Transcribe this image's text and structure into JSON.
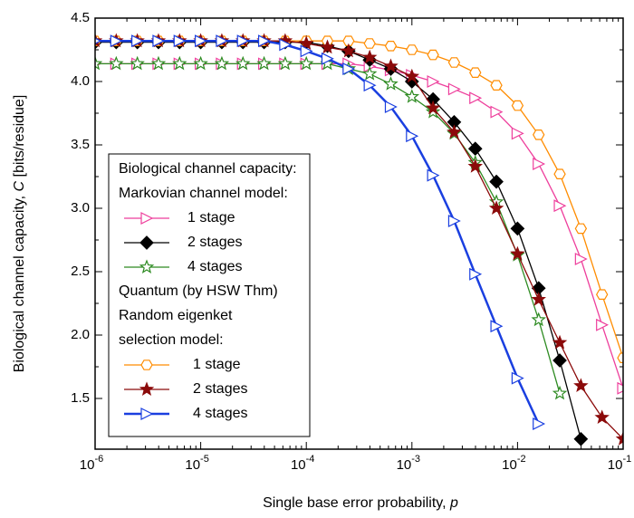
{
  "chart_data": {
    "type": "line",
    "ylabel": [
      "Biological channel capacity, ",
      "C",
      " [bits/residue]"
    ],
    "xlabel": [
      "Single base error probability, ",
      "p"
    ],
    "log_x": true,
    "xlim": [
      1e-06,
      0.1
    ],
    "xticks": [
      {
        "value": 1e-06,
        "label": "10",
        "exponent": "-6"
      },
      {
        "value": 1e-05,
        "label": "10",
        "exponent": "-5"
      },
      {
        "value": 0.0001,
        "label": "10",
        "exponent": "-4"
      },
      {
        "value": 0.001,
        "label": "10",
        "exponent": "-3"
      },
      {
        "value": 0.01,
        "label": "10",
        "exponent": "-2"
      },
      {
        "value": 0.1,
        "label": "10",
        "exponent": "-1"
      }
    ],
    "ylim": [
      1.1,
      4.5
    ],
    "yticks": [
      1.5,
      {
        "value": 2,
        "label": "2.0"
      },
      2.5,
      {
        "value": 3,
        "label": "3.0"
      },
      3.5,
      {
        "value": 4,
        "label": "4.0"
      },
      4.5
    ],
    "legend_headings": [
      [
        "Biological channel capacity:",
        "Markovian channel model:"
      ],
      [
        "Quantum (by HSW Thm)",
        "Random eigenket",
        "selection model:"
      ]
    ],
    "x": [
      1e-06,
      1.585e-06,
      2.512e-06,
      3.981e-06,
      6.31e-06,
      1e-05,
      1.585e-05,
      2.512e-05,
      3.981e-05,
      6.31e-05,
      0.0001,
      0.0001585,
      0.0002512,
      0.0003981,
      0.000631,
      0.001,
      0.001585,
      0.002512,
      0.003981,
      0.00631,
      0.01,
      0.01585,
      0.02512,
      0.03981,
      0.0631,
      0.1
    ],
    "series": [
      {
        "name": "1 stage",
        "color": "#ee3f9c",
        "marker": "triangle-right",
        "filled": false,
        "values": [
          4.14,
          4.14,
          4.14,
          4.14,
          4.14,
          4.14,
          4.14,
          4.14,
          4.14,
          4.14,
          4.14,
          4.14,
          4.14,
          4.12,
          4.09,
          4.05,
          4.0,
          3.94,
          3.87,
          3.76,
          3.59,
          3.35,
          3.02,
          2.6,
          2.08,
          1.58
        ]
      },
      {
        "name": "2 stages",
        "color": "#000000",
        "marker": "diamond",
        "filled": true,
        "values": [
          4.31,
          4.31,
          4.31,
          4.31,
          4.31,
          4.31,
          4.31,
          4.31,
          4.31,
          4.31,
          4.31,
          4.28,
          4.24,
          4.17,
          4.1,
          4.0,
          3.86,
          3.68,
          3.47,
          3.21,
          2.84,
          2.37,
          1.8,
          1.18,
          null,
          null
        ]
      },
      {
        "name": "4 stages",
        "color": "#2e8b22",
        "marker": "star",
        "filled": false,
        "values": [
          4.14,
          4.14,
          4.14,
          4.14,
          4.14,
          4.14,
          4.14,
          4.14,
          4.14,
          4.14,
          4.14,
          4.14,
          4.1,
          4.06,
          3.98,
          3.88,
          3.76,
          3.59,
          3.36,
          3.05,
          2.63,
          2.12,
          1.54,
          null,
          null,
          null
        ]
      },
      {
        "name": "1 stage",
        "color": "#ff8c00",
        "marker": "hexagon",
        "filled": false,
        "values": [
          4.32,
          4.32,
          4.32,
          4.32,
          4.32,
          4.32,
          4.32,
          4.32,
          4.32,
          4.32,
          4.32,
          4.32,
          4.32,
          4.3,
          4.28,
          4.25,
          4.21,
          4.15,
          4.07,
          3.97,
          3.81,
          3.58,
          3.27,
          2.84,
          2.32,
          1.82
        ]
      },
      {
        "name": "2 stages",
        "color": "#8b0a0a",
        "marker": "star",
        "filled": true,
        "values": [
          4.32,
          4.32,
          4.32,
          4.32,
          4.32,
          4.32,
          4.32,
          4.32,
          4.32,
          4.32,
          4.3,
          4.27,
          4.24,
          4.19,
          4.12,
          4.04,
          3.79,
          3.6,
          3.33,
          3.0,
          2.64,
          2.28,
          1.94,
          1.6,
          1.35,
          1.18
        ]
      },
      {
        "name": "4 stages",
        "color": "#1a3fe0",
        "marker": "triangle-right",
        "filled": false,
        "width": 2.5,
        "values": [
          4.32,
          4.32,
          4.32,
          4.32,
          4.32,
          4.32,
          4.32,
          4.32,
          4.32,
          4.29,
          4.24,
          4.18,
          4.1,
          3.97,
          3.8,
          3.57,
          3.26,
          2.9,
          2.48,
          2.07,
          1.66,
          1.3,
          null,
          null,
          null,
          null
        ]
      }
    ]
  }
}
